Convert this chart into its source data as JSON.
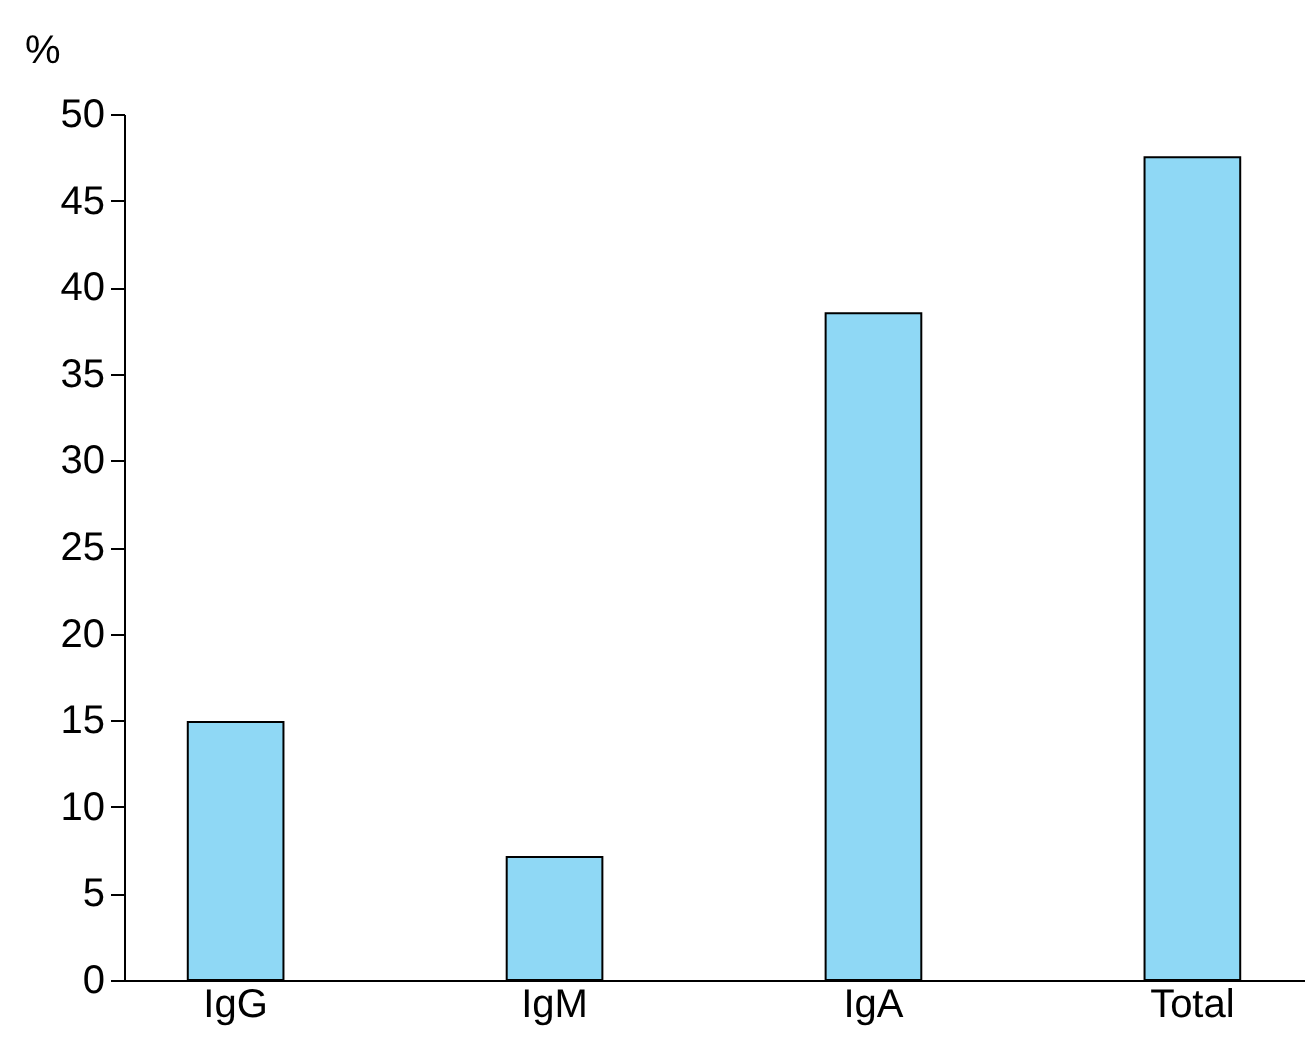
{
  "chart_data": {
    "type": "bar",
    "ylabel": "%",
    "categories": [
      "IgG",
      "IgM",
      "IgA",
      "Total"
    ],
    "values": [
      14.9,
      7.1,
      38.5,
      47.5
    ],
    "color": "#8fd8f5",
    "ylim": [
      0,
      50
    ],
    "yticks": [
      0,
      5,
      10,
      15,
      20,
      25,
      30,
      35,
      40,
      45,
      50
    ],
    "grid": false
  }
}
